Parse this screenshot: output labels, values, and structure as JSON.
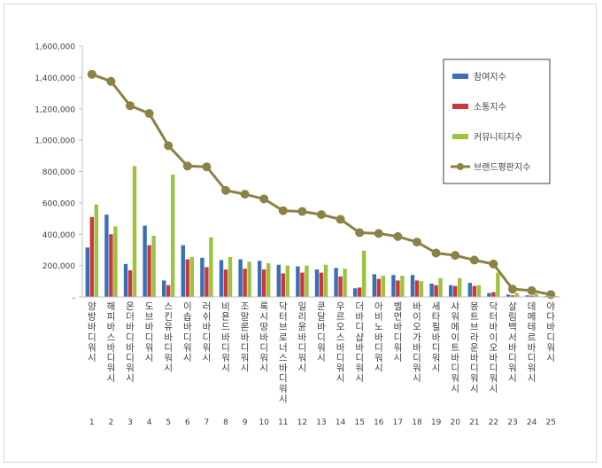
{
  "chart_data": {
    "type": "bar",
    "categories": [
      "양방바디워시",
      "해피바스바디워시",
      "온더바디바디워시",
      "도브바디워시",
      "스킨유바디워시",
      "이솝바디워시",
      "러쉬바디워시",
      "비욘드바디워시",
      "조말론바디워시",
      "록시땅바디워시",
      "닥터브로너스바디워시",
      "일리윤바디워시",
      "쿤달바디워시",
      "우르오스바디워시",
      "더바디샵바디워시",
      "아비노바디워시",
      "벨먼바디워시",
      "바이오가바디워시",
      "세타필바디워시",
      "샤워메이트바디워시",
      "몽트브라운바디워시",
      "닥터바이오바디워시",
      "살림백서바디워시",
      "데메테르바디워시",
      "야다바디워시"
    ],
    "category_numbers": [
      "1",
      "2",
      "3",
      "4",
      "5",
      "6",
      "7",
      "8",
      "9",
      "10",
      "11",
      "12",
      "13",
      "14",
      "15",
      "16",
      "17",
      "18",
      "19",
      "20",
      "21",
      "22",
      "23",
      "24",
      "25"
    ],
    "series": [
      {
        "name": "참여지수",
        "kind": "bar",
        "color": "#3a6fb7",
        "values": [
          315000,
          525000,
          210000,
          455000,
          105000,
          330000,
          250000,
          235000,
          240000,
          230000,
          205000,
          195000,
          175000,
          185000,
          55000,
          145000,
          140000,
          140000,
          85000,
          75000,
          90000,
          25000,
          15000,
          10000,
          5000
        ]
      },
      {
        "name": "소통지수",
        "kind": "bar",
        "color": "#c83a3a",
        "values": [
          510000,
          400000,
          170000,
          330000,
          75000,
          240000,
          190000,
          175000,
          180000,
          175000,
          150000,
          155000,
          155000,
          130000,
          60000,
          115000,
          105000,
          105000,
          75000,
          70000,
          70000,
          30000,
          10000,
          8000,
          4000
        ]
      },
      {
        "name": "커뮤니티지수",
        "kind": "bar",
        "color": "#9dc23f",
        "values": [
          590000,
          450000,
          835000,
          390000,
          780000,
          255000,
          380000,
          255000,
          225000,
          215000,
          200000,
          200000,
          205000,
          180000,
          295000,
          135000,
          135000,
          100000,
          120000,
          120000,
          75000,
          155000,
          25000,
          20000,
          6000
        ]
      },
      {
        "name": "브랜드평판지수",
        "kind": "line",
        "color": "#8c8246",
        "values": [
          1420000,
          1375000,
          1220000,
          1170000,
          965000,
          835000,
          830000,
          680000,
          655000,
          625000,
          550000,
          545000,
          525000,
          495000,
          410000,
          405000,
          385000,
          350000,
          280000,
          265000,
          235000,
          210000,
          50000,
          40000,
          15000
        ]
      }
    ],
    "y_ticks": [
      "-",
      "200,000",
      "400,000",
      "600,000",
      "800,000",
      "1,000,000",
      "1,200,000",
      "1,400,000",
      "1,600,000"
    ],
    "ylim": [
      0,
      1600000
    ],
    "legend_placement": "top-right",
    "grid": false
  }
}
